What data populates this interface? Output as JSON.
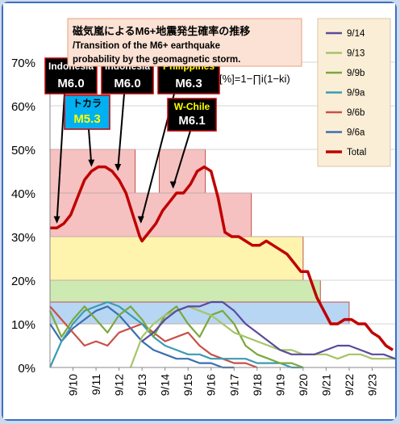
{
  "chart_data": {
    "type": "line",
    "title": "磁気嵐によるM6+地震発生確率の推移",
    "subtitle": "/Transition of the M6+ earthquake",
    "subtitle2": "probability by the geomagnetic storm.",
    "formula": "[%]=1−∏i(1−ki)",
    "ylim": [
      0,
      70
    ],
    "y_ticks": [
      "0%",
      "10%",
      "20%",
      "30%",
      "40%",
      "50%",
      "60%",
      "70%"
    ],
    "x_ticks": [
      "9/10",
      "9/11",
      "9/12",
      "9/13",
      "9/14",
      "9/15",
      "9/16",
      "9/17",
      "9/18",
      "9/19",
      "9/20",
      "9/21",
      "9/22",
      "9/23"
    ],
    "legend": [
      "9/14",
      "9/13",
      "9/9b",
      "9/9a",
      "9/6b",
      "9/6a",
      "Total"
    ],
    "colors": {
      "9/14": "#5b4a9c",
      "9/13": "#a6c46a",
      "9/9b": "#7aa83c",
      "9/9a": "#3b9bb3",
      "9/6b": "#c9504a",
      "9/6a": "#3a6fb0",
      "Total": "#c00000"
    },
    "x_range": [
      9.0,
      24.0
    ],
    "bands": [
      {
        "x0": 9.0,
        "x1": 12.7,
        "y0": 40,
        "y1": 50,
        "fill": "#f4b6b6"
      },
      {
        "x0": 13.75,
        "x1": 15.75,
        "y0": 40,
        "y1": 50,
        "fill": "#f4b6b6"
      },
      {
        "x0": 9.0,
        "x1": 17.75,
        "y0": 30,
        "y1": 40,
        "fill": "#f4b6b6"
      },
      {
        "x0": 9.0,
        "x1": 20.0,
        "y0": 20,
        "y1": 30,
        "fill": "#fff2a0"
      },
      {
        "x0": 9.0,
        "x1": 20.75,
        "y0": 15,
        "y1": 20,
        "fill": "#c4e6a6"
      },
      {
        "x0": 9.0,
        "x1": 22.0,
        "y0": 10,
        "y1": 15,
        "fill": "#a9cff2"
      }
    ],
    "annotations": [
      {
        "region": "Indonesia",
        "mag": "M6.0",
        "x": 9.3,
        "y": 33
      },
      {
        "region": "トカラ",
        "mag": "M5.3",
        "x": 10.8,
        "y": 46
      },
      {
        "region": "Indonesia",
        "mag": "M6.0",
        "x": 11.95,
        "y": 45
      },
      {
        "region": "Philippines",
        "mag": "M6.3",
        "x": 12.95,
        "y": 33
      },
      {
        "region": "W-Chile",
        "mag": "M6.1",
        "x": 14.35,
        "y": 41
      }
    ],
    "series": [
      {
        "name": "Total",
        "x": [
          9.0,
          9.3,
          9.6,
          9.9,
          10.2,
          10.5,
          10.8,
          11.1,
          11.4,
          11.7,
          12.0,
          12.3,
          12.6,
          12.9,
          13.0,
          13.3,
          13.6,
          13.9,
          14.2,
          14.5,
          14.8,
          15.1,
          15.4,
          15.7,
          16.0,
          16.3,
          16.6,
          16.9,
          17.2,
          17.5,
          17.8,
          18.1,
          18.4,
          18.7,
          19.0,
          19.3,
          19.6,
          19.9,
          20.2,
          20.4,
          20.6,
          20.8,
          21.0,
          21.2,
          21.5,
          21.8,
          22.1,
          22.4,
          22.7,
          23.0,
          23.3,
          23.6,
          23.9
        ],
        "values": [
          32,
          32,
          33,
          35,
          39,
          43,
          45,
          46,
          46,
          45,
          43,
          40,
          35,
          30,
          29,
          31,
          33,
          36,
          38,
          40,
          40,
          42,
          45,
          46,
          45,
          39,
          31,
          30,
          30,
          29,
          28,
          28,
          29,
          28,
          27,
          26,
          24,
          22,
          22,
          19,
          16,
          14,
          12,
          10,
          10,
          11,
          11,
          10,
          10,
          8,
          7,
          5,
          4
        ]
      },
      {
        "name": "9/14",
        "x": [
          13.0,
          13.5,
          14.0,
          14.5,
          15.0,
          15.5,
          16.0,
          16.5,
          17.0,
          17.5,
          18.0,
          18.5,
          19.0,
          19.5,
          20.0,
          20.5,
          21.0,
          21.5,
          22.0,
          22.5,
          23.0,
          23.5,
          24.0
        ],
        "values": [
          6,
          8,
          11,
          13,
          14,
          14,
          15,
          15,
          13,
          10,
          8,
          6,
          4,
          3,
          3,
          3,
          4,
          5,
          5,
          4,
          3,
          3,
          2
        ]
      },
      {
        "name": "9/13",
        "x": [
          12.5,
          13.0,
          13.5,
          14.0,
          14.5,
          15.0,
          15.5,
          16.0,
          16.5,
          17.0,
          17.5,
          18.0,
          18.5,
          19.0,
          19.5,
          20.0,
          20.5,
          21.0,
          21.5,
          22.0,
          22.5,
          23.0,
          23.5,
          24.0
        ],
        "values": [
          0,
          7,
          10,
          12,
          13,
          14,
          13,
          12,
          10,
          8,
          7,
          6,
          5,
          4,
          4,
          3,
          3,
          3,
          2,
          3,
          3,
          2,
          2,
          2
        ]
      },
      {
        "name": "9/9b",
        "x": [
          9.0,
          9.5,
          10.0,
          10.5,
          11.0,
          11.5,
          12.0,
          12.5,
          13.0,
          13.5,
          14.0,
          14.5,
          15.0,
          15.5,
          16.0,
          16.5,
          17.0,
          17.5,
          18.0,
          18.5,
          19.0,
          19.5,
          20.0
        ],
        "values": [
          13,
          7,
          11,
          14,
          11,
          8,
          12,
          14,
          11,
          7,
          12,
          14,
          10,
          7,
          12,
          13,
          10,
          5,
          3,
          2,
          1,
          1,
          0
        ]
      },
      {
        "name": "9/9a",
        "x": [
          9.0,
          9.5,
          10.0,
          10.5,
          11.0,
          11.5,
          12.0,
          12.5,
          13.0,
          13.5,
          14.0,
          14.5,
          15.0,
          15.5,
          16.0,
          16.5,
          17.0,
          17.5,
          18.0,
          18.5,
          19.0,
          19.5,
          20.0
        ],
        "values": [
          0,
          6,
          10,
          13,
          14,
          15,
          14,
          12,
          10,
          7,
          5,
          4,
          3,
          3,
          2,
          2,
          2,
          2,
          1,
          1,
          1,
          0,
          0
        ]
      },
      {
        "name": "9/6b",
        "x": [
          9.0,
          9.5,
          10.0,
          10.5,
          11.0,
          11.5,
          12.0,
          12.5,
          13.0,
          13.5,
          14.0,
          14.5,
          15.0,
          15.5,
          16.0,
          16.5,
          17.0,
          17.5,
          18.0
        ],
        "values": [
          14,
          11,
          8,
          5,
          6,
          5,
          8,
          9,
          10,
          8,
          6,
          7,
          8,
          5,
          3,
          2,
          1,
          1,
          0
        ]
      },
      {
        "name": "9/6a",
        "x": [
          9.0,
          9.5,
          10.0,
          10.5,
          11.0,
          11.5,
          12.0,
          12.5,
          13.0,
          13.5,
          14.0,
          14.5,
          15.0,
          15.5,
          16.0,
          16.5,
          17.0
        ],
        "values": [
          10,
          6,
          9,
          11,
          13,
          14,
          12,
          9,
          6,
          4,
          3,
          2,
          2,
          1,
          1,
          0,
          0
        ]
      }
    ]
  }
}
